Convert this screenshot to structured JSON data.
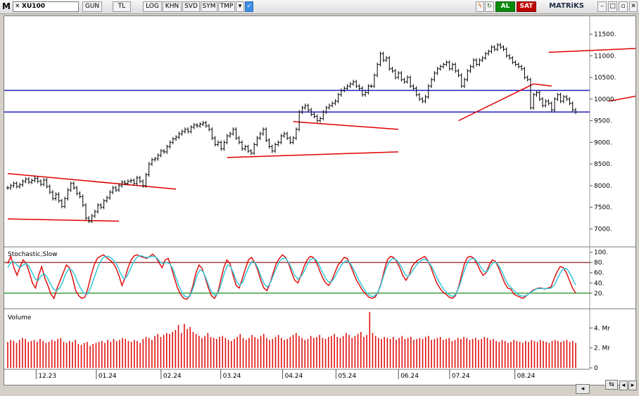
{
  "toolbar": {
    "logo": "M",
    "symbol": "XU100",
    "buttons": [
      "GUN",
      "TL",
      "LOG",
      "KHN",
      "SVD",
      "SYM",
      "TMP"
    ],
    "buy_label": "AL",
    "sell_label": "SAT",
    "brand": "MATRiKS",
    "colors": {
      "buy": "#0a8a0a",
      "sell": "#c00000"
    }
  },
  "chart_data": [
    {
      "type": "line",
      "subtype": "ohlc-bar",
      "title": "",
      "x_ticks": [
        "12.23",
        "01.24",
        "02.24",
        "03.24",
        "04.24",
        "05.24",
        "06.24",
        "07.24",
        "08.24"
      ],
      "y_ticks": [
        7000,
        7500,
        8000,
        8500,
        9000,
        9500,
        10000,
        10500,
        11000,
        11500
      ],
      "y_tick_labels": [
        "7000.",
        "7500.",
        "8000.",
        "8500.",
        "9000.",
        "9500.",
        "10000.",
        "10500.",
        "11000.",
        "11500."
      ],
      "ylim": [
        6650,
        11850
      ],
      "grid": false,
      "series": [
        {
          "values": [
            7950,
            8000,
            8050,
            7980,
            8020,
            8100,
            8150,
            8080,
            8120,
            8170,
            8100,
            8030,
            8130,
            7980,
            7850,
            7700,
            7800,
            7650,
            7520,
            7700,
            7900,
            8050,
            7950,
            7820,
            7750,
            7550,
            7250,
            7180,
            7300,
            7400,
            7550,
            7500,
            7650,
            7720,
            7850,
            7950,
            7900,
            8000,
            8080,
            8050,
            8100,
            8120,
            8050,
            8180,
            8100,
            8000,
            8250,
            8500,
            8600,
            8620,
            8700,
            8800,
            8780,
            8900,
            9000,
            9080,
            9120,
            9200,
            9250,
            9300,
            9250,
            9350,
            9400,
            9380,
            9420,
            9450,
            9380,
            9300,
            9100,
            8950,
            9000,
            8850,
            9000,
            9150,
            9200,
            9300,
            9100,
            9000,
            8850,
            8900,
            8800,
            8750,
            8950,
            9100,
            9200,
            9300,
            9050,
            8900,
            8800,
            8950,
            9000,
            9150,
            9200,
            9100,
            9000,
            9100,
            9300,
            9700,
            9800,
            9850,
            9750,
            9650,
            9600,
            9500,
            9550,
            9700,
            9800,
            9850,
            9900,
            9950,
            10100,
            10200,
            10250,
            10300,
            10350,
            10400,
            10300,
            10250,
            10100,
            10150,
            10300,
            10300,
            10550,
            10800,
            11050,
            10900,
            10950,
            10700,
            10650,
            10500,
            10600,
            10450,
            10400,
            10500,
            10300,
            10250,
            10100,
            10000,
            9950,
            10050,
            10300,
            10450,
            10600,
            10700,
            10750,
            10800,
            10850,
            10700,
            10800,
            10650,
            10550,
            10300,
            10450,
            10650,
            10750,
            10900,
            10800,
            10900,
            10950,
            11050,
            11100,
            11200,
            11150,
            11250,
            11200,
            11150,
            11000,
            10950,
            10850,
            10800,
            10750,
            10700,
            10500,
            10450,
            9800,
            10100,
            10150,
            10000,
            9850,
            9950,
            9900,
            9750,
            10000,
            10100,
            9950,
            10050,
            10000,
            9900,
            9750,
            9700
          ]
        }
      ],
      "trendlines": [
        {
          "x": [
            0,
            56
          ],
          "y": [
            8280,
            7920
          ],
          "color": "#e00000"
        },
        {
          "x": [
            0,
            37
          ],
          "y": [
            7230,
            7180
          ],
          "color": "#e00000"
        },
        {
          "x": [
            73,
            130
          ],
          "y": [
            8650,
            8780
          ],
          "color": "#e00000"
        },
        {
          "x": [
            95,
            130
          ],
          "y": [
            9480,
            9300
          ],
          "color": "#e00000"
        },
        {
          "x": [
            150,
            175
          ],
          "y": [
            9500,
            10350
          ],
          "color": "#e00000"
        },
        {
          "x": [
            175,
            181
          ],
          "y": [
            10350,
            10300
          ],
          "color": "#e00000"
        },
        {
          "x": [
            180,
            300
          ],
          "y": [
            11080,
            11450
          ],
          "color": "#e00000"
        },
        {
          "x": [
            200,
            300
          ],
          "y": [
            9950,
            11250
          ],
          "color": "#e00000"
        }
      ],
      "hlines": [
        {
          "y": 10200,
          "color": "#2020c0"
        },
        {
          "y": 9700,
          "color": "#2020c0"
        }
      ]
    },
    {
      "type": "line",
      "title": "Stochastic,Slow",
      "y_ticks": [
        20,
        40,
        60,
        80,
        100
      ],
      "y_tick_labels": [
        "20.",
        "40.",
        "60.",
        "80.",
        "100."
      ],
      "ylim": [
        -5,
        105
      ],
      "levels": [
        {
          "y": 80,
          "color": "#8b0000"
        },
        {
          "y": 20,
          "color": "#008000"
        }
      ],
      "series": [
        {
          "name": "",
          "color": "#e01010",
          "values": [
            78,
            92,
            70,
            55,
            72,
            85,
            78,
            60,
            40,
            30,
            55,
            72,
            50,
            35,
            18,
            10,
            30,
            45,
            60,
            75,
            70,
            50,
            25,
            15,
            10,
            12,
            30,
            55,
            75,
            88,
            92,
            95,
            90,
            85,
            80,
            70,
            55,
            35,
            50,
            70,
            85,
            93,
            95,
            92,
            90,
            88,
            92,
            96,
            90,
            80,
            70,
            85,
            88,
            70,
            50,
            30,
            18,
            10,
            8,
            15,
            35,
            60,
            75,
            68,
            50,
            30,
            15,
            10,
            20,
            45,
            70,
            85,
            78,
            55,
            35,
            30,
            48,
            68,
            85,
            90,
            80,
            65,
            45,
            30,
            25,
            40,
            60,
            78,
            88,
            95,
            90,
            78,
            60,
            45,
            40,
            55,
            72,
            85,
            92,
            90,
            80,
            65,
            50,
            40,
            35,
            45,
            60,
            75,
            82,
            90,
            88,
            75,
            60,
            45,
            35,
            25,
            18,
            12,
            10,
            12,
            22,
            40,
            65,
            85,
            92,
            90,
            82,
            70,
            55,
            45,
            55,
            72,
            80,
            85,
            88,
            92,
            85,
            72,
            55,
            40,
            30,
            22,
            18,
            12,
            10,
            15,
            30,
            55,
            78,
            90,
            92,
            88,
            78,
            65,
            55,
            60,
            75,
            85,
            82,
            70,
            55,
            40,
            30,
            28,
            18,
            15,
            12,
            10,
            15,
            20,
            25,
            28,
            30,
            30,
            28,
            30,
            32,
            48,
            62,
            72,
            70,
            60,
            45,
            30,
            20
          ]
        },
        {
          "name": "",
          "color": "#30c8d8",
          "values": [
            70,
            80,
            82,
            75,
            70,
            75,
            78,
            72,
            60,
            48,
            45,
            55,
            58,
            50,
            38,
            28,
            25,
            30,
            42,
            58,
            68,
            65,
            55,
            40,
            28,
            20,
            18,
            28,
            45,
            62,
            78,
            88,
            92,
            92,
            88,
            82,
            72,
            58,
            48,
            52,
            65,
            78,
            88,
            93,
            93,
            90,
            90,
            92,
            92,
            88,
            80,
            78,
            80,
            78,
            68,
            52,
            35,
            22,
            14,
            12,
            18,
            35,
            55,
            66,
            62,
            48,
            32,
            20,
            15,
            22,
            40,
            60,
            75,
            72,
            58,
            42,
            35,
            42,
            58,
            72,
            82,
            80,
            68,
            52,
            38,
            32,
            40,
            55,
            70,
            82,
            88,
            88,
            80,
            68,
            55,
            48,
            52,
            62,
            75,
            85,
            88,
            85,
            75,
            62,
            50,
            42,
            42,
            50,
            62,
            72,
            80,
            84,
            80,
            70,
            58,
            45,
            35,
            25,
            18,
            14,
            14,
            20,
            32,
            52,
            70,
            82,
            88,
            86,
            80,
            70,
            58,
            52,
            58,
            68,
            76,
            82,
            86,
            86,
            80,
            70,
            58,
            45,
            35,
            26,
            20,
            15,
            14,
            20,
            35,
            55,
            72,
            84,
            88,
            86,
            80,
            70,
            62,
            62,
            72,
            80,
            80,
            72,
            60,
            46,
            36,
            30,
            24,
            18,
            15,
            14,
            16,
            20,
            24,
            28,
            29,
            29,
            29,
            29,
            30,
            36,
            48,
            60,
            68,
            68,
            60,
            48,
            36
          ]
        }
      ]
    },
    {
      "type": "bar",
      "title": "Volume",
      "y_ticks": [
        0,
        2,
        4
      ],
      "y_tick_labels": [
        "0",
        "2. Mr",
        "4. Mr"
      ],
      "ylim": [
        0,
        5.5
      ],
      "color": "#e01010",
      "values": [
        2.6,
        2.8,
        2.7,
        2.5,
        2.8,
        3.0,
        2.9,
        2.6,
        2.7,
        2.8,
        2.6,
        2.9,
        2.7,
        2.5,
        2.6,
        2.8,
        2.7,
        2.9,
        3.0,
        2.6,
        2.5,
        2.7,
        2.6,
        2.8,
        2.4,
        2.3,
        2.5,
        2.6,
        2.2,
        2.4,
        2.5,
        2.6,
        2.7,
        2.5,
        2.8,
        2.6,
        2.9,
        2.7,
        2.8,
        3.0,
        2.9,
        2.7,
        2.6,
        2.8,
        2.7,
        2.5,
        2.9,
        3.1,
        3.0,
        2.8,
        3.2,
        3.4,
        3.1,
        3.3,
        3.5,
        3.4,
        3.6,
        3.8,
        4.3,
        3.5,
        4.4,
        3.9,
        4.1,
        3.6,
        3.4,
        3.2,
        3.0,
        3.2,
        3.5,
        3.1,
        3.0,
        2.9,
        3.1,
        3.2,
        3.0,
        2.8,
        2.7,
        2.9,
        3.1,
        3.4,
        3.0,
        2.8,
        3.0,
        3.3,
        3.1,
        2.9,
        3.2,
        3.4,
        3.0,
        2.8,
        2.9,
        3.1,
        3.3,
        3.0,
        2.8,
        2.9,
        3.1,
        3.3,
        3.5,
        3.2,
        3.0,
        2.8,
        2.9,
        3.2,
        3.0,
        3.1,
        3.3,
        3.0,
        2.9,
        3.1,
        3.2,
        3.4,
        3.1,
        3.0,
        3.2,
        3.5,
        3.3,
        3.0,
        3.2,
        3.4,
        3.6,
        3.1,
        3.3,
        5.6,
        3.5,
        3.2,
        3.0,
        2.9,
        3.1,
        3.0,
        2.9,
        3.1,
        2.8,
        3.0,
        3.2,
        2.9,
        3.0,
        3.1,
        2.8,
        2.9,
        3.0,
        2.9,
        3.1,
        3.2,
        2.8,
        2.9,
        3.0,
        3.1,
        2.8,
        2.9,
        3.0,
        2.7,
        2.8,
        3.0,
        2.9,
        3.1,
        3.0,
        2.8,
        2.9,
        3.0,
        2.8,
        2.9,
        3.1,
        3.0,
        2.8,
        2.9,
        2.7,
        2.6,
        2.8,
        2.7,
        2.5,
        2.6,
        2.8,
        2.7,
        2.6,
        2.5,
        2.7,
        2.6,
        2.8,
        2.7,
        2.6,
        2.8,
        2.7,
        2.6,
        2.5,
        2.7,
        2.8,
        2.7,
        2.6,
        2.7,
        2.8,
        2.6,
        2.7,
        2.5
      ]
    }
  ]
}
